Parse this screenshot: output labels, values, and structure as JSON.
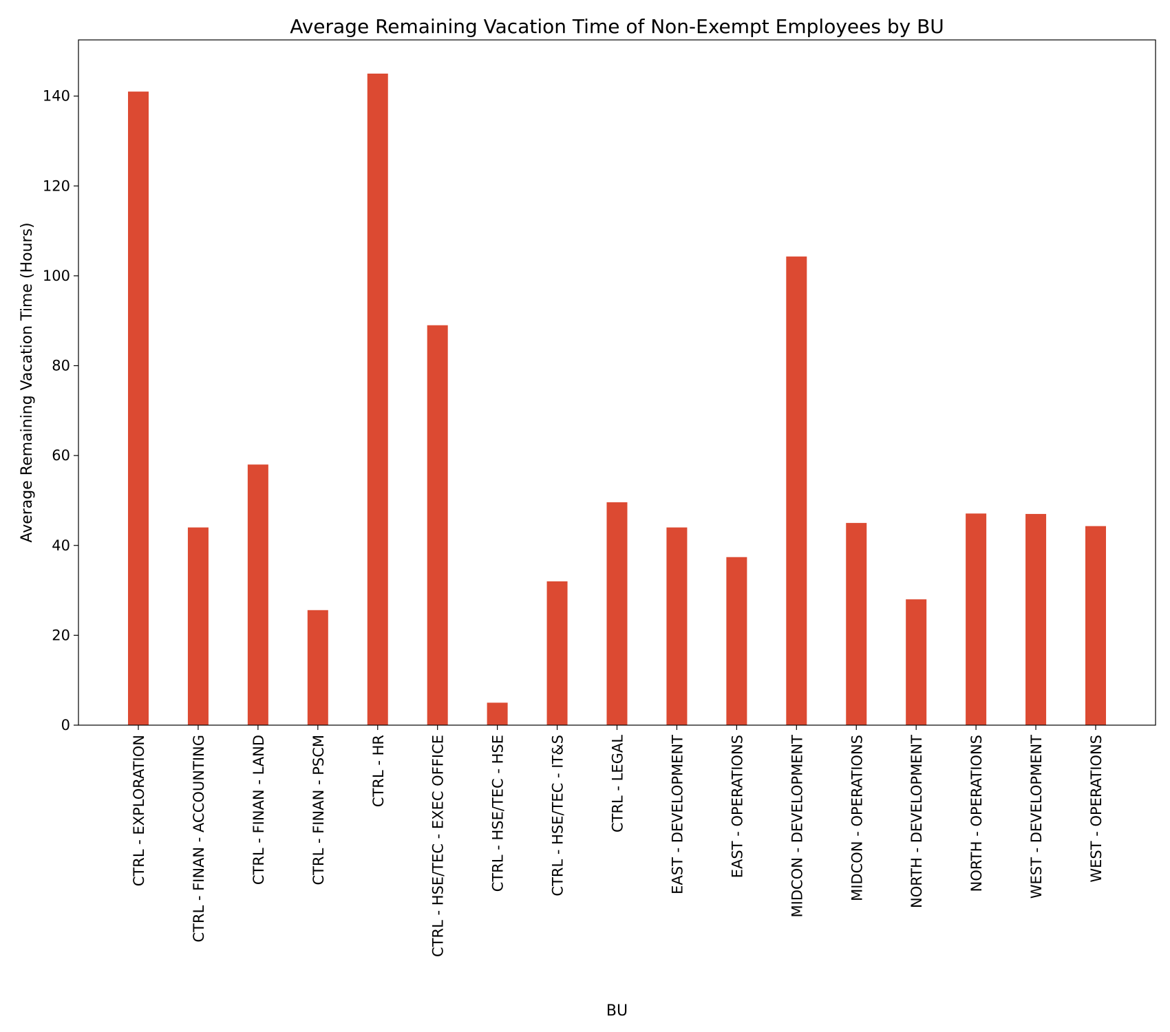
{
  "chart_data": {
    "type": "bar",
    "title": "Average Remaining Vacation Time of Non-Exempt Employees by BU",
    "xlabel": "BU",
    "ylabel": "Average Remaining Vacation Time (Hours)",
    "ylim": [
      0,
      152.5
    ],
    "yticks": [
      0,
      20,
      40,
      60,
      80,
      100,
      120,
      140
    ],
    "grid": false,
    "bar_color": "#dc4a32",
    "categories": [
      "CTRL - EXPLORATION",
      "CTRL - FINAN - ACCOUNTING",
      "CTRL - FINAN - LAND",
      "CTRL - FINAN - PSCM",
      "CTRL - HR",
      "CTRL - HSE/TEC - EXEC OFFICE",
      "CTRL - HSE/TEC - HSE",
      "CTRL - HSE/TEC - IT&S",
      "CTRL - LEGAL",
      "EAST - DEVELOPMENT",
      "EAST - OPERATIONS",
      "MIDCON - DEVELOPMENT",
      "MIDCON - OPERATIONS",
      "NORTH - DEVELOPMENT",
      "NORTH - OPERATIONS",
      "WEST - DEVELOPMENT",
      "WEST - OPERATIONS"
    ],
    "values": [
      141,
      44,
      58,
      25.6,
      145,
      89,
      5,
      32,
      49.6,
      44,
      37.4,
      104.3,
      45,
      28,
      47.1,
      47,
      44.3
    ]
  }
}
